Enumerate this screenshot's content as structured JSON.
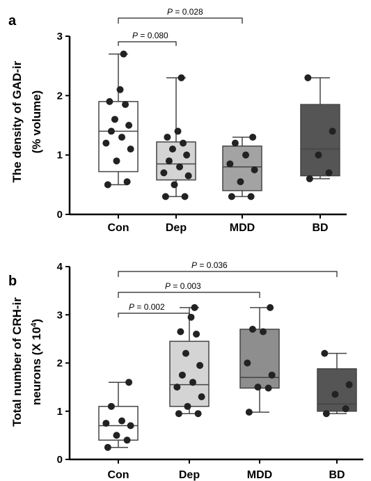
{
  "chart_data": [
    {
      "panel": "a",
      "type": "box",
      "title": "",
      "xlabel": "",
      "ylabel_line1": "The density of  GAD-ir",
      "ylabel_line2": "(% volume)",
      "ylim": [
        0,
        3
      ],
      "yticks": [
        "0",
        "1",
        "2",
        "3"
      ],
      "categories": [
        "Con",
        "Dep",
        "MDD",
        "BD"
      ],
      "boxes": [
        {
          "category": "Con",
          "color": "#ffffff",
          "whisker_low": 0.5,
          "q1": 0.72,
          "median": 1.4,
          "q3": 1.9,
          "whisker_high": 2.7,
          "points": [
            0.5,
            0.55,
            0.9,
            1.1,
            1.2,
            1.3,
            1.4,
            1.5,
            1.6,
            1.85,
            1.9,
            2.1,
            2.7
          ]
        },
        {
          "category": "Dep",
          "color": "#d4d4d4",
          "whisker_low": 0.3,
          "q1": 0.58,
          "median": 0.85,
          "q3": 1.22,
          "whisker_high": 2.3,
          "points": [
            0.3,
            0.3,
            0.5,
            0.65,
            0.7,
            0.8,
            0.9,
            1.0,
            1.1,
            1.2,
            1.3,
            1.4,
            2.3
          ]
        },
        {
          "category": "MDD",
          "color": "#a3a3a3",
          "whisker_low": 0.3,
          "q1": 0.4,
          "median": 0.8,
          "q3": 1.15,
          "whisker_high": 1.3,
          "points": [
            0.3,
            0.3,
            0.55,
            0.75,
            0.85,
            1.0,
            1.2,
            1.3
          ]
        },
        {
          "category": "BD",
          "color": "#555555",
          "whisker_low": 0.6,
          "q1": 0.65,
          "median": 1.1,
          "q3": 1.85,
          "whisker_high": 2.3,
          "points": [
            0.6,
            0.7,
            1.0,
            1.4,
            2.3
          ]
        }
      ],
      "comparisons": [
        {
          "label": "P = 0.028",
          "from": "Con",
          "to": "MDD"
        },
        {
          "label": "P = 0.080",
          "from": "Con",
          "to": "Dep"
        }
      ]
    },
    {
      "panel": "b",
      "type": "box",
      "title": "",
      "xlabel": "",
      "ylabel_line1": "Total number of CRH-ir",
      "ylabel_line2": "neurons (X 10",
      "ylabel_superscript": "4",
      "ylabel_suffix": ")",
      "ylim": [
        0,
        4
      ],
      "yticks": [
        "0",
        "1",
        "2",
        "3",
        "4"
      ],
      "categories": [
        "Con",
        "Dep",
        "MDD",
        "BD"
      ],
      "boxes": [
        {
          "category": "Con",
          "color": "#ffffff",
          "whisker_low": 0.25,
          "q1": 0.4,
          "median": 0.7,
          "q3": 1.1,
          "whisker_high": 1.6,
          "points": [
            0.25,
            0.4,
            0.5,
            0.7,
            0.75,
            0.8,
            1.1,
            1.6
          ]
        },
        {
          "category": "Dep",
          "color": "#d4d4d4",
          "whisker_low": 0.95,
          "q1": 1.1,
          "median": 1.55,
          "q3": 2.45,
          "whisker_high": 3.15,
          "points": [
            0.95,
            0.95,
            1.1,
            1.3,
            1.5,
            1.6,
            1.75,
            1.95,
            2.2,
            2.6,
            2.65,
            2.95,
            3.15
          ]
        },
        {
          "category": "MDD",
          "color": "#8e8e8e",
          "whisker_low": 0.98,
          "q1": 1.48,
          "median": 1.7,
          "q3": 2.7,
          "whisker_high": 3.15,
          "points": [
            0.98,
            1.48,
            1.5,
            1.75,
            2.0,
            2.65,
            2.7,
            3.15
          ]
        },
        {
          "category": "BD",
          "color": "#555555",
          "whisker_low": 0.95,
          "q1": 1.0,
          "median": 1.15,
          "q3": 1.88,
          "whisker_high": 2.2,
          "points": [
            0.95,
            1.05,
            1.35,
            1.55,
            2.2
          ]
        }
      ],
      "comparisons": [
        {
          "label": "P = 0.036",
          "from": "Con",
          "to": "BD"
        },
        {
          "label": "P = 0.003",
          "from": "Con",
          "to": "MDD"
        },
        {
          "label": "P = 0.002",
          "from": "Con",
          "to": "Dep"
        }
      ]
    }
  ]
}
